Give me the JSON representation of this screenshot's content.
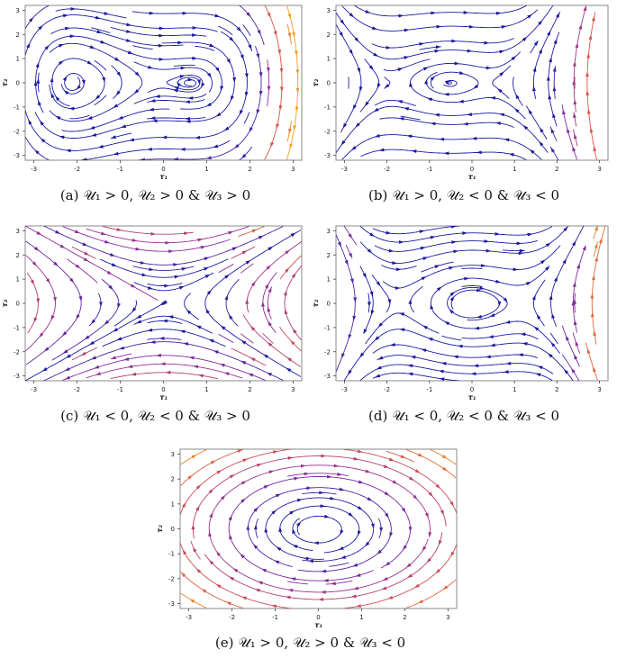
{
  "chart_data": [
    {
      "type": "streamplot",
      "panel_label": "(a)",
      "caption": "(a) 𝒰₁ > 0,  𝒰₂ > 0 & 𝒰₃ > 0",
      "xlabel": "τ₁",
      "ylabel": "τ₂",
      "xlim": [
        -3.2,
        3.2
      ],
      "ylim": [
        -3.2,
        3.2
      ],
      "xticks": [
        -3,
        -2,
        -1,
        0,
        1,
        2,
        3
      ],
      "yticks": [
        -3,
        -2,
        -1,
        0,
        1,
        2,
        3
      ],
      "params": {
        "U1": 1,
        "U2": 1,
        "U3": 1
      },
      "critical_points": [
        {
          "x": -2.1,
          "y": 0,
          "kind": "saddle"
        },
        {
          "x": 0,
          "y": 0,
          "kind": "center"
        },
        {
          "x": 0.6,
          "y": 0,
          "kind": "saddle"
        }
      ]
    },
    {
      "type": "streamplot",
      "panel_label": "(b)",
      "caption": "(b) 𝒰₁ > 0,  𝒰₂ < 0 & 𝒰₃ < 0",
      "xlabel": "τ₁",
      "ylabel": "τ₂",
      "xlim": [
        -3.2,
        3.2
      ],
      "ylim": [
        -3.2,
        3.2
      ],
      "xticks": [
        -3,
        -2,
        -1,
        0,
        1,
        2,
        3
      ],
      "yticks": [
        -3,
        -2,
        -1,
        0,
        1,
        2,
        3
      ],
      "params": {
        "U1": 1,
        "U2": -1,
        "U3": -1
      },
      "critical_points": [
        {
          "x": -1.9,
          "y": 0,
          "kind": "center"
        },
        {
          "x": -0.5,
          "y": 0,
          "kind": "saddle"
        },
        {
          "x": 0.4,
          "y": 0,
          "kind": "center"
        }
      ]
    },
    {
      "type": "streamplot",
      "panel_label": "(c)",
      "caption": "(c) 𝒰₁ < 0,  𝒰₂ < 0 & 𝒰₃ > 0",
      "xlabel": "τ₁",
      "ylabel": "τ₂",
      "xlim": [
        -3.2,
        3.2
      ],
      "ylim": [
        -3.2,
        3.2
      ],
      "xticks": [
        -3,
        -2,
        -1,
        0,
        1,
        2,
        3
      ],
      "yticks": [
        -3,
        -2,
        -1,
        0,
        1,
        2,
        3
      ],
      "params": {
        "U1": -1,
        "U2": -1,
        "U3": 1
      },
      "critical_points": [
        {
          "x": 0,
          "y": 0,
          "kind": "saddle"
        }
      ]
    },
    {
      "type": "streamplot",
      "panel_label": "(d)",
      "caption": "(d) 𝒰₁ < 0,  𝒰₂ < 0 & 𝒰₃ < 0",
      "xlabel": "τ₁",
      "ylabel": "τ₂",
      "xlim": [
        -3.2,
        3.2
      ],
      "ylim": [
        -3.2,
        3.2
      ],
      "xticks": [
        -3,
        -2,
        -1,
        0,
        1,
        2,
        3
      ],
      "yticks": [
        -3,
        -2,
        -1,
        0,
        1,
        2,
        3
      ],
      "params": {
        "U1": -1,
        "U2": -1,
        "U3": -1
      },
      "critical_points": [
        {
          "x": -1.75,
          "y": 0,
          "kind": "center"
        },
        {
          "x": 0,
          "y": 0,
          "kind": "saddle"
        },
        {
          "x": 1.05,
          "y": 0,
          "kind": "center"
        }
      ]
    },
    {
      "type": "streamplot",
      "panel_label": "(e)",
      "caption": "(e) 𝒰₁ > 0,  𝒰₂ > 0 & 𝒰₃ < 0",
      "xlabel": "τ₁",
      "ylabel": "τ₂",
      "xlim": [
        -3.2,
        3.2
      ],
      "ylim": [
        -3.2,
        3.2
      ],
      "xticks": [
        -3,
        -2,
        -1,
        0,
        1,
        2,
        3
      ],
      "yticks": [
        -3,
        -2,
        -1,
        0,
        1,
        2,
        3
      ],
      "params": {
        "U1": 1,
        "U2": 1,
        "U3": -1
      },
      "critical_points": [
        {
          "x": 0,
          "y": 0,
          "kind": "center"
        }
      ]
    }
  ],
  "colors": {
    "slow": "#1a1aa0",
    "mid": "#8a2aa0",
    "hot": "#d8504a",
    "fast": "#f0a020",
    "frame": "#888888",
    "tick_text": "#222222"
  }
}
